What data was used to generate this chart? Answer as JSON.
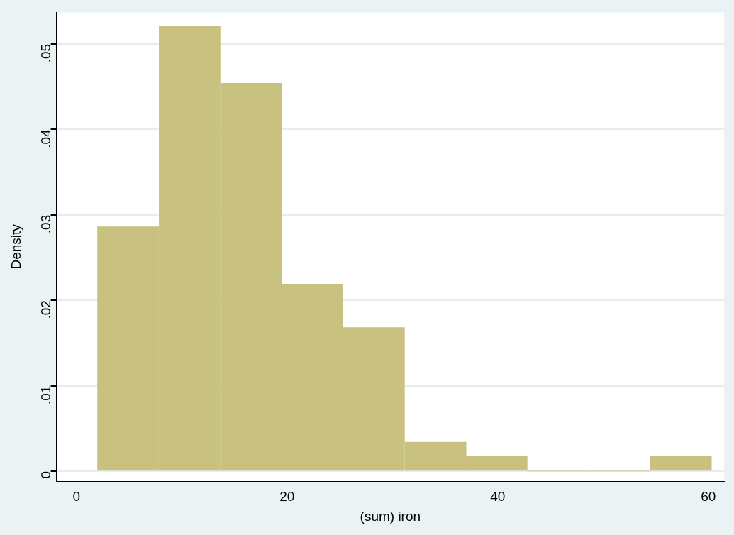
{
  "chart_data": {
    "type": "histogram",
    "xlabel": "(sum) iron",
    "ylabel": "Density",
    "bins": [
      2,
      7.8,
      13.7,
      19.5,
      25.3,
      31.2,
      37,
      42.8,
      48.6,
      54.5,
      60.3
    ],
    "values": [
      0.0286,
      0.0521,
      0.0454,
      0.0219,
      0.0168,
      0.0034,
      0.0018,
      0,
      0,
      0.0018
    ],
    "color": "#c9c17f",
    "xlim": [
      -1.9,
      61.5
    ],
    "xticks": [
      0,
      20,
      40,
      60
    ],
    "ylim": [
      -0.0012,
      0.0537
    ],
    "yticks": [
      {
        "value": 0,
        "label": "0"
      },
      {
        "value": 0.01,
        "label": ".01"
      },
      {
        "value": 0.02,
        "label": ".02"
      },
      {
        "value": 0.03,
        "label": ".03"
      },
      {
        "value": 0.04,
        "label": ".04"
      },
      {
        "value": 0.05,
        "label": ".05"
      }
    ],
    "grid": "y",
    "legend": false
  }
}
